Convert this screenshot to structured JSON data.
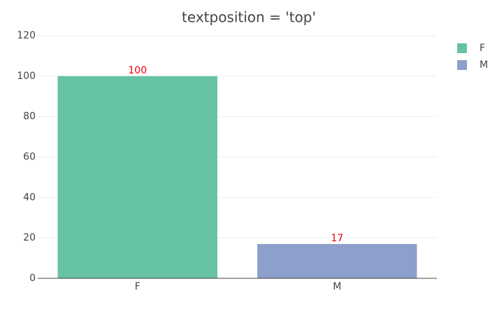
{
  "chart_data": {
    "type": "bar",
    "title": "textposition = 'top'",
    "categories": [
      "F",
      "M"
    ],
    "series": [
      {
        "name": "F",
        "color": "#66c2a5",
        "values": [
          100,
          null
        ]
      },
      {
        "name": "M",
        "color": "#8da0cb",
        "values": [
          null,
          17
        ]
      }
    ],
    "value_label_color": "#e8000b",
    "ylim": [
      0,
      120
    ],
    "yticks": [
      0,
      20,
      40,
      60,
      80,
      100,
      120
    ],
    "grid": true,
    "legend": "top-right"
  }
}
